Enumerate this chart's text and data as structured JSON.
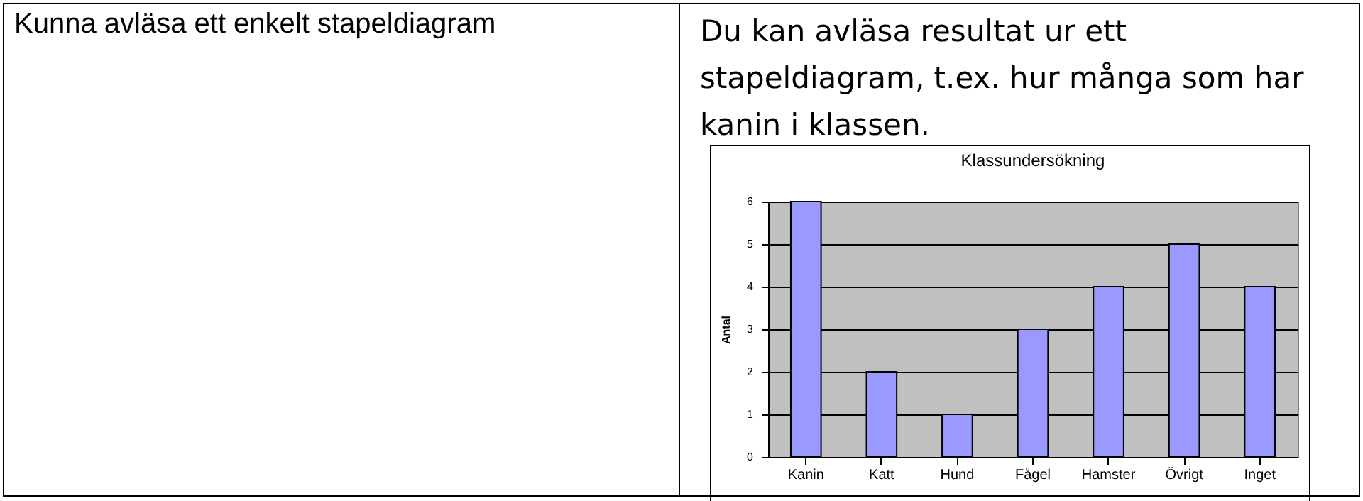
{
  "chart_data": {
    "type": "bar",
    "title": "Klassundersökning",
    "ylabel": "Antal",
    "annotations": [
      "Kunna avläsa ett enkelt stapeldiagram",
      "Du kan avläsa resultat ur ett stapeldiagram, t.ex. hur många som har kanin i klassen."
    ],
    "categories": [
      "Kanin",
      "Katt",
      "Hund",
      "Fågel",
      "Hamster",
      "Övrigt",
      "Inget"
    ],
    "values": [
      6,
      2,
      1,
      3,
      4,
      5,
      4
    ],
    "color": "#9999ff",
    "ylim": [
      0,
      6
    ],
    "yticks": [
      0,
      1,
      2,
      3,
      4,
      5,
      6
    ],
    "grid": "y"
  }
}
